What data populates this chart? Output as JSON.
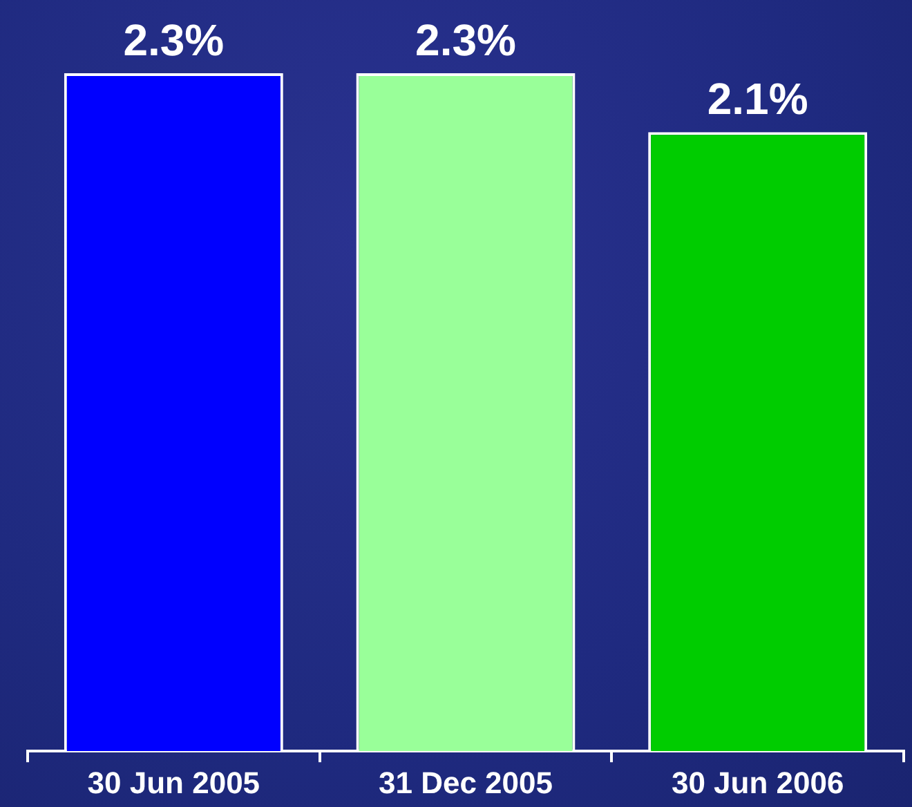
{
  "chart_data": {
    "type": "bar",
    "categories": [
      "30 Jun 2005",
      "31 Dec 2005",
      "30 Jun 2006"
    ],
    "values": [
      2.3,
      2.3,
      2.1
    ],
    "colors": [
      "#0000ff",
      "#99ff99",
      "#00cc00"
    ],
    "value_labels": [
      "2.3%",
      "2.3%",
      "2.1%"
    ],
    "grid": false,
    "legend": false
  }
}
